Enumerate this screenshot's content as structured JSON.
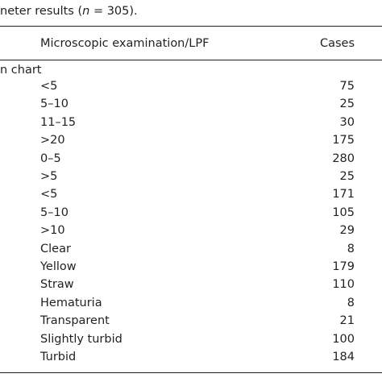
{
  "caption": {
    "prefix": "neter results (",
    "symbol": "n",
    "suffix": " = 305)."
  },
  "table": {
    "header": [
      "Microscopic examination/LPF",
      "Cases"
    ],
    "section": "n chart",
    "rows": [
      [
        "<5",
        75
      ],
      [
        "5–10",
        25
      ],
      [
        "11–15",
        30
      ],
      [
        ">20",
        175
      ],
      [
        "0–5",
        280
      ],
      [
        ">5",
        25
      ],
      [
        "<5",
        171
      ],
      [
        "5–10",
        105
      ],
      [
        ">10",
        29
      ],
      [
        "Clear",
        8
      ],
      [
        "Yellow",
        179
      ],
      [
        "Straw",
        110
      ],
      [
        "Hematuria",
        8
      ],
      [
        "Transparent",
        21
      ],
      [
        "Slightly turbid",
        100
      ],
      [
        "Turbid",
        184
      ]
    ]
  }
}
